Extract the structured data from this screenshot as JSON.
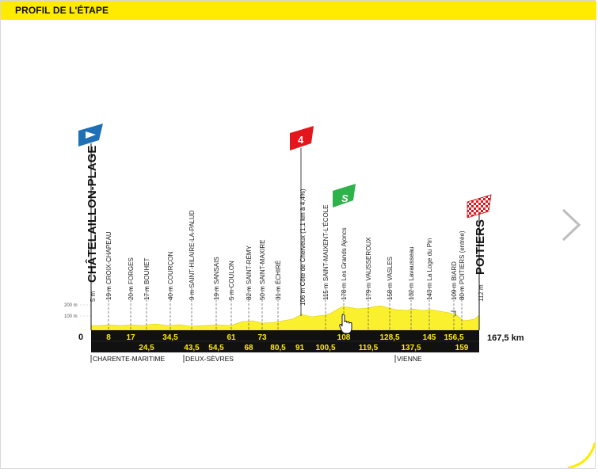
{
  "header": {
    "title": "PROFIL DE L'ÉTAPE"
  },
  "profile": {
    "start": {
      "name": "CHÂTELAILLON-PLAGE",
      "alt": "5 m"
    },
    "finish": {
      "name": "POITIERS",
      "alt": "112 m"
    },
    "climb": {
      "category": "4",
      "label": "106 m Côte de Cherveux (1,1 km à 4,4%)"
    },
    "sprint": {
      "symbol": "S"
    },
    "scale": {
      "hi": "200 m",
      "lo": "100 m"
    },
    "total_distance": "167,5 km",
    "zero": "0",
    "waypoints": [
      {
        "label": "19 m CROIX-CHAPEAU",
        "km": "8"
      },
      {
        "label": "20 m FORGES",
        "km": "17"
      },
      {
        "label": "17 m BOUHET",
        "km": "24,5"
      },
      {
        "label": "40 m COURÇON",
        "km": "34,5"
      },
      {
        "label": "9 m SAINT-HILAIRE-LA-PALUD",
        "km": "43,5"
      },
      {
        "label": "19 m SANSAIS",
        "km": "54,5"
      },
      {
        "label": "5 m COULON",
        "km": "61"
      },
      {
        "label": "82 m SAINT-RÉMY",
        "km": "68"
      },
      {
        "label": "50 m SAINT-MAXIRE",
        "km": "73"
      },
      {
        "label": "31 m ÉCHIRÉ",
        "km": "80,5"
      },
      {
        "label": "115 m SAINT-MAIXENT-L'ÉCOLE",
        "km": "100,5"
      },
      {
        "label": "178 m Les Grands Ajoncs",
        "km": "108"
      },
      {
        "label": "179 m VAUSSEROUX",
        "km": "119,5"
      },
      {
        "label": "158 m VASLES",
        "km": "128,5"
      },
      {
        "label": "132 m Lavausseau",
        "km": "137,5"
      },
      {
        "label": "143 m La Loge du Pin",
        "km": "145"
      },
      {
        "label": "109 m BIARD",
        "km": "156,5"
      },
      {
        "label": "80 m POITIERS (entrée)",
        "km": "159"
      }
    ],
    "climb_km": "91",
    "departments": [
      "CHARENTE-MARITIME",
      "DEUX-SÈVRES",
      "VIENNE"
    ]
  },
  "colors": {
    "accent": "#ffeb00",
    "bar": "#111111",
    "profile": "#fbf02e",
    "kom": "#e3161b",
    "sprint": "#2db34a",
    "start_flag": "#1f6fb5"
  },
  "icons": [
    "start-flag-icon",
    "kom-flag-icon",
    "sprint-flag-icon",
    "finish-flag-icon",
    "chevron-right-icon",
    "hand-cursor-icon"
  ]
}
